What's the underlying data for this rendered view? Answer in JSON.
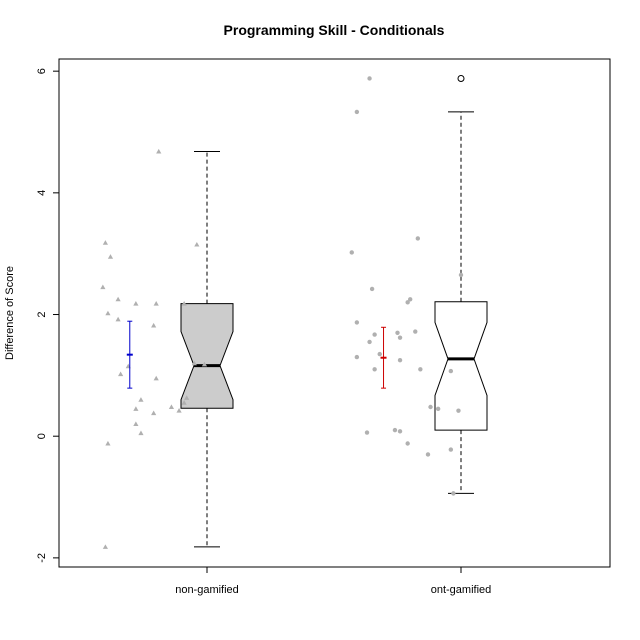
{
  "chart_data": {
    "type": "box",
    "title": "Programming Skill - Conditionals",
    "xlabel": "",
    "ylabel": "Difference of Score",
    "ylim": [
      -2.15,
      6.2
    ],
    "yticks": [
      -2,
      0,
      2,
      4,
      6
    ],
    "categories": [
      "non-gamified",
      "ont-gamified"
    ],
    "boxes": [
      {
        "name": "non-gamified",
        "fill": "#cccccc",
        "notched": true,
        "min": -1.82,
        "q1": 0.46,
        "median": 1.16,
        "q3": 2.18,
        "max": 4.68,
        "notch_low": 0.6,
        "notch_high": 1.72,
        "outliers": []
      },
      {
        "name": "ont-gamified",
        "fill": "#ffffff",
        "notched": true,
        "min": -0.94,
        "q1": 0.1,
        "median": 1.27,
        "q3": 2.21,
        "max": 5.33,
        "notch_low": 0.67,
        "notch_high": 1.87,
        "outliers": [
          5.88
        ]
      }
    ],
    "mean_ci": [
      {
        "name": "non-gamified",
        "color": "#0000cc",
        "mean": 1.34,
        "low": 0.79,
        "high": 1.89
      },
      {
        "name": "ont-gamified",
        "color": "#cc0000",
        "mean": 1.29,
        "low": 0.79,
        "high": 1.79
      }
    ],
    "jitter_points": [
      {
        "name": "non-gamified",
        "marker": "triangle",
        "color": "#b0b0b0",
        "points": [
          {
            "x": -0.19,
            "y": 4.68
          },
          {
            "x": -0.04,
            "y": 3.15
          },
          {
            "x": -0.4,
            "y": 3.18
          },
          {
            "x": -0.38,
            "y": 2.95
          },
          {
            "x": -0.41,
            "y": 2.45
          },
          {
            "x": -0.35,
            "y": 2.25
          },
          {
            "x": -0.28,
            "y": 2.18
          },
          {
            "x": -0.2,
            "y": 2.18
          },
          {
            "x": -0.09,
            "y": 2.18
          },
          {
            "x": -0.39,
            "y": 2.02
          },
          {
            "x": -0.35,
            "y": 1.92
          },
          {
            "x": -0.21,
            "y": 1.82
          },
          {
            "x": -0.05,
            "y": 1.2
          },
          {
            "x": -0.01,
            "y": 1.18
          },
          {
            "x": -0.31,
            "y": 1.15
          },
          {
            "x": -0.34,
            "y": 1.02
          },
          {
            "x": -0.2,
            "y": 0.95
          },
          {
            "x": -0.26,
            "y": 0.6
          },
          {
            "x": -0.08,
            "y": 0.63
          },
          {
            "x": -0.09,
            "y": 0.55
          },
          {
            "x": -0.14,
            "y": 0.48
          },
          {
            "x": -0.28,
            "y": 0.45
          },
          {
            "x": -0.11,
            "y": 0.42
          },
          {
            "x": -0.21,
            "y": 0.38
          },
          {
            "x": -0.28,
            "y": 0.2
          },
          {
            "x": -0.26,
            "y": 0.05
          },
          {
            "x": -0.39,
            "y": -0.12
          },
          {
            "x": -0.4,
            "y": -1.82
          }
        ]
      },
      {
        "name": "ont-gamified",
        "marker": "circle",
        "color": "#b0b0b0",
        "points": [
          {
            "x": -0.36,
            "y": 5.88
          },
          {
            "x": -0.41,
            "y": 5.33
          },
          {
            "x": -0.17,
            "y": 3.25
          },
          {
            "x": -0.43,
            "y": 3.02
          },
          {
            "x": 0.0,
            "y": 2.65
          },
          {
            "x": -0.35,
            "y": 2.42
          },
          {
            "x": -0.2,
            "y": 2.25
          },
          {
            "x": -0.21,
            "y": 2.2
          },
          {
            "x": -0.41,
            "y": 1.87
          },
          {
            "x": -0.34,
            "y": 1.67
          },
          {
            "x": -0.25,
            "y": 1.7
          },
          {
            "x": -0.18,
            "y": 1.72
          },
          {
            "x": -0.36,
            "y": 1.55
          },
          {
            "x": -0.24,
            "y": 1.62
          },
          {
            "x": -0.41,
            "y": 1.3
          },
          {
            "x": -0.32,
            "y": 1.35
          },
          {
            "x": -0.24,
            "y": 1.25
          },
          {
            "x": -0.34,
            "y": 1.1
          },
          {
            "x": -0.16,
            "y": 1.1
          },
          {
            "x": -0.04,
            "y": 1.07
          },
          {
            "x": -0.12,
            "y": 0.48
          },
          {
            "x": -0.09,
            "y": 0.45
          },
          {
            "x": -0.01,
            "y": 0.42
          },
          {
            "x": -0.26,
            "y": 0.1
          },
          {
            "x": -0.24,
            "y": 0.08
          },
          {
            "x": -0.37,
            "y": 0.06
          },
          {
            "x": -0.21,
            "y": -0.12
          },
          {
            "x": -0.04,
            "y": -0.22
          },
          {
            "x": -0.13,
            "y": -0.3
          },
          {
            "x": -0.03,
            "y": -0.94
          }
        ]
      }
    ],
    "grid": false,
    "legend": "none"
  }
}
